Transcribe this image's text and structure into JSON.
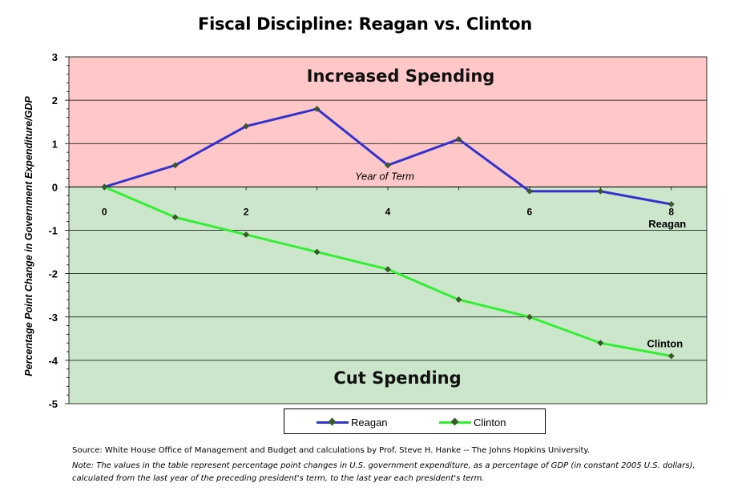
{
  "chart_data": {
    "type": "line",
    "title": "Fiscal Discipline: Reagan vs. Clinton",
    "xlabel": "Year of Term",
    "ylabel": "Percentage Point Change in Government Expenditure/GDP",
    "x": [
      0,
      1,
      2,
      3,
      4,
      5,
      6,
      7,
      8
    ],
    "x_tick_labels": [
      "0",
      "2",
      "4",
      "6",
      "8"
    ],
    "x_tick_values": [
      0,
      2,
      4,
      6,
      8
    ],
    "y_tick_labels": [
      "3",
      "2",
      "1",
      "0",
      "-1",
      "-2",
      "-3",
      "-4",
      "-5"
    ],
    "y_tick_values": [
      3,
      2,
      1,
      0,
      -1,
      -2,
      -3,
      -4,
      -5
    ],
    "xlim": [
      -0.5,
      8.5
    ],
    "ylim": [
      -5,
      3
    ],
    "grid": true,
    "legend_position": "bottom",
    "series": [
      {
        "name": "Reagan",
        "color": "#3333cc",
        "values": [
          0,
          0.5,
          1.4,
          1.8,
          0.5,
          1.1,
          -0.1,
          -0.1,
          -0.4
        ]
      },
      {
        "name": "Clinton",
        "color": "#33ee33",
        "values": [
          0,
          -0.7,
          -1.1,
          -1.5,
          -1.9,
          -2.6,
          -3.0,
          -3.6,
          -3.9
        ]
      }
    ],
    "regions": [
      {
        "label": "Increased Spending",
        "from": 0,
        "to": 3,
        "color": "#ffc8c8"
      },
      {
        "label": "Cut Spending",
        "from": -5,
        "to": 0,
        "color": "#cce6cc"
      }
    ],
    "end_labels": [
      "Reagan",
      "Clinton"
    ],
    "marker_color": "#3a5a2a"
  },
  "footer": {
    "source": "Source: White House Office of Management and Budget and calculations by Prof. Steve H. Hanke -- The Johns Hopkins University.",
    "note_prefix": "Note:",
    "note": "The values in the table represent percentage point changes in U.S. government expenditure, as a percentage of GDP (in constant 2005 U.S. dollars), calculated from the last year of the preceding president's term, to the last year each president's term."
  }
}
